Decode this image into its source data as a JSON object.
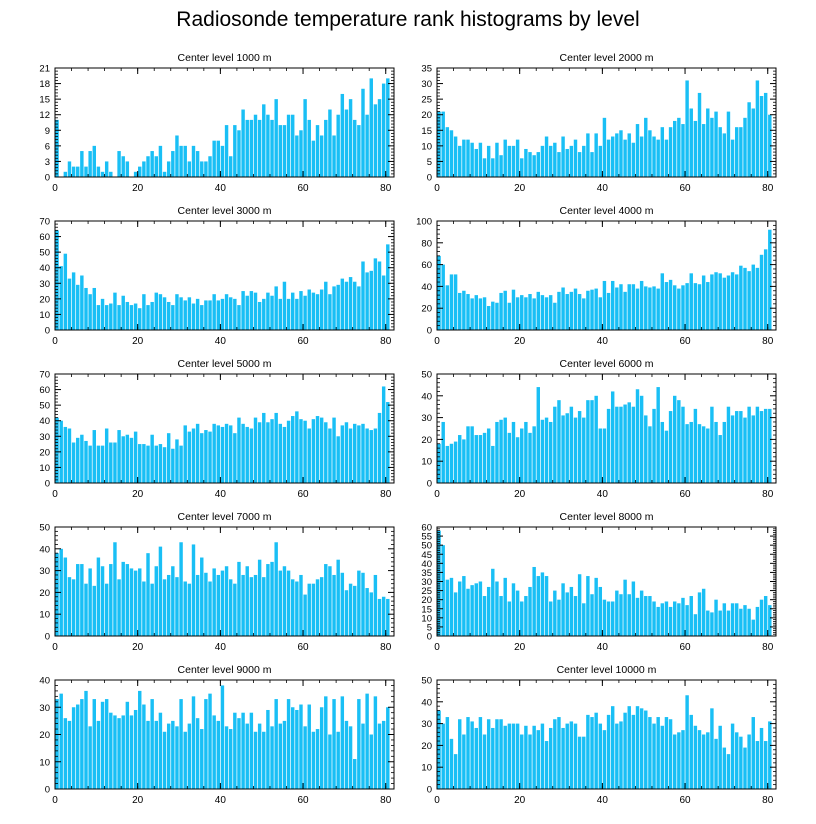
{
  "figure_title": "Radiosonde temperature rank histograms by level",
  "bar_color": "#19bff5",
  "bar_outline": "#ffffff",
  "chart_data": [
    {
      "type": "bar",
      "title": "Center level 1000 m",
      "xlim": [
        0,
        82
      ],
      "ylim": [
        0,
        21
      ],
      "xticks": [
        0,
        20,
        40,
        60,
        80
      ],
      "yticks": [
        0,
        3,
        6,
        9,
        12,
        15,
        18,
        21
      ],
      "values": [
        11,
        0,
        1,
        3,
        2,
        2,
        5,
        2,
        5,
        6,
        2,
        1,
        3,
        1,
        0,
        5,
        4,
        3,
        0,
        1,
        2,
        3,
        4,
        5,
        4,
        6,
        1,
        3,
        5,
        8,
        6,
        6,
        3,
        6,
        5,
        3,
        3,
        4,
        7,
        7,
        6,
        10,
        4,
        10,
        9,
        13,
        11,
        11,
        12,
        11,
        14,
        12,
        11,
        15,
        10,
        10,
        12,
        12,
        8,
        9,
        15,
        11,
        7,
        10,
        8,
        11,
        13,
        8,
        12,
        16,
        13,
        15,
        11,
        10,
        17,
        12,
        19,
        14,
        15,
        18,
        19
      ]
    },
    {
      "type": "bar",
      "title": "Center level 2000 m",
      "xlim": [
        0,
        82
      ],
      "ylim": [
        0,
        35
      ],
      "xticks": [
        0,
        20,
        40,
        60,
        80
      ],
      "yticks": [
        0,
        5,
        10,
        15,
        20,
        25,
        30,
        35
      ],
      "values": [
        21,
        21,
        16,
        15,
        13,
        10,
        12,
        12,
        11,
        9,
        11,
        6,
        10,
        6,
        11,
        7,
        12,
        10,
        10,
        12,
        6,
        9,
        8,
        7,
        8,
        10,
        13,
        10,
        11,
        8,
        13,
        9,
        10,
        12,
        8,
        10,
        14,
        8,
        14,
        10,
        19,
        12,
        13,
        14,
        15,
        12,
        14,
        11,
        17,
        13,
        19,
        15,
        13,
        12,
        16,
        12,
        16,
        18,
        19,
        17,
        31,
        22,
        18,
        27,
        17,
        22,
        19,
        21,
        16,
        14,
        21,
        12,
        16,
        16,
        19,
        24,
        22,
        31,
        26,
        27,
        20
      ]
    },
    {
      "type": "bar",
      "title": "Center level 3000 m",
      "xlim": [
        0,
        82
      ],
      "ylim": [
        0,
        70
      ],
      "xticks": [
        0,
        20,
        40,
        60,
        80
      ],
      "yticks": [
        0,
        10,
        20,
        30,
        40,
        50,
        60,
        70
      ],
      "values": [
        64,
        41,
        49,
        33,
        37,
        29,
        35,
        27,
        23,
        27,
        16,
        20,
        16,
        17,
        24,
        16,
        22,
        18,
        16,
        17,
        14,
        23,
        16,
        18,
        24,
        23,
        21,
        18,
        16,
        23,
        21,
        19,
        21,
        17,
        20,
        16,
        19,
        19,
        23,
        19,
        20,
        23,
        21,
        20,
        16,
        25,
        22,
        25,
        24,
        18,
        20,
        24,
        22,
        28,
        20,
        31,
        20,
        24,
        20,
        25,
        22,
        26,
        24,
        23,
        26,
        31,
        23,
        28,
        29,
        33,
        31,
        34,
        31,
        28,
        44,
        37,
        38,
        46,
        44,
        35,
        55
      ]
    },
    {
      "type": "bar",
      "title": "Center level 4000 m",
      "xlim": [
        0,
        82
      ],
      "ylim": [
        0,
        100
      ],
      "xticks": [
        0,
        20,
        40,
        60,
        80
      ],
      "yticks": [
        0,
        20,
        40,
        60,
        80,
        100
      ],
      "values": [
        68,
        60,
        41,
        51,
        51,
        34,
        36,
        33,
        29,
        32,
        29,
        30,
        22,
        26,
        25,
        34,
        36,
        25,
        37,
        30,
        32,
        30,
        33,
        29,
        35,
        32,
        30,
        32,
        25,
        35,
        39,
        33,
        35,
        38,
        33,
        29,
        36,
        37,
        38,
        30,
        45,
        34,
        45,
        39,
        42,
        35,
        42,
        42,
        38,
        45,
        40,
        39,
        40,
        38,
        52,
        44,
        46,
        41,
        38,
        41,
        43,
        52,
        43,
        42,
        50,
        44,
        51,
        53,
        52,
        48,
        50,
        53,
        51,
        59,
        57,
        54,
        60,
        57,
        69,
        74,
        92
      ]
    },
    {
      "type": "bar",
      "title": "Center level 5000 m",
      "xlim": [
        0,
        82
      ],
      "ylim": [
        0,
        70
      ],
      "xticks": [
        0,
        20,
        40,
        60,
        80
      ],
      "yticks": [
        0,
        10,
        20,
        30,
        40,
        50,
        60,
        70
      ],
      "values": [
        42,
        40,
        36,
        35,
        26,
        29,
        31,
        27,
        24,
        34,
        24,
        24,
        35,
        26,
        26,
        34,
        30,
        31,
        29,
        33,
        25,
        25,
        24,
        31,
        24,
        25,
        23,
        32,
        22,
        28,
        24,
        37,
        33,
        35,
        38,
        32,
        34,
        33,
        38,
        37,
        36,
        38,
        37,
        32,
        42,
        38,
        36,
        35,
        42,
        39,
        45,
        39,
        41,
        45,
        38,
        36,
        40,
        43,
        46,
        41,
        40,
        35,
        41,
        43,
        42,
        39,
        35,
        42,
        30,
        37,
        39,
        35,
        38,
        37,
        38,
        35,
        34,
        35,
        45,
        62,
        52
      ]
    },
    {
      "type": "bar",
      "title": "Center level 6000 m",
      "xlim": [
        0,
        82
      ],
      "ylim": [
        0,
        50
      ],
      "xticks": [
        0,
        20,
        40,
        60,
        80
      ],
      "yticks": [
        0,
        10,
        20,
        30,
        40,
        50
      ],
      "values": [
        18,
        28,
        17,
        18,
        19,
        22,
        20,
        26,
        26,
        22,
        22,
        23,
        25,
        17,
        28,
        29,
        30,
        23,
        28,
        21,
        25,
        28,
        23,
        26,
        44,
        29,
        30,
        28,
        35,
        38,
        31,
        32,
        35,
        30,
        33,
        30,
        38,
        38,
        40,
        25,
        25,
        34,
        42,
        35,
        35,
        36,
        37,
        35,
        43,
        40,
        31,
        26,
        34,
        44,
        28,
        24,
        33,
        40,
        38,
        35,
        27,
        28,
        34,
        27,
        26,
        25,
        35,
        28,
        22,
        28,
        35,
        31,
        33,
        33,
        30,
        35,
        31,
        35,
        33,
        34,
        34
      ]
    },
    {
      "type": "bar",
      "title": "Center level 7000 m",
      "xlim": [
        0,
        82
      ],
      "ylim": [
        0,
        50
      ],
      "xticks": [
        0,
        20,
        40,
        60,
        80
      ],
      "yticks": [
        0,
        10,
        20,
        30,
        40,
        50
      ],
      "values": [
        38,
        40,
        36,
        27,
        26,
        33,
        33,
        24,
        31,
        23,
        36,
        32,
        24,
        33,
        43,
        26,
        34,
        33,
        31,
        30,
        31,
        25,
        38,
        24,
        32,
        41,
        26,
        28,
        32,
        27,
        43,
        25,
        24,
        42,
        28,
        36,
        29,
        25,
        31,
        28,
        30,
        32,
        26,
        24,
        34,
        28,
        32,
        27,
        28,
        35,
        27,
        33,
        34,
        43,
        30,
        32,
        30,
        26,
        25,
        28,
        19,
        24,
        24,
        26,
        27,
        33,
        32,
        28,
        35,
        29,
        21,
        24,
        23,
        30,
        29,
        22,
        20,
        28,
        17,
        18,
        17
      ]
    },
    {
      "type": "bar",
      "title": "Center level 8000 m",
      "xlim": [
        0,
        82
      ],
      "ylim": [
        0,
        60
      ],
      "xticks": [
        0,
        20,
        40,
        60,
        80
      ],
      "yticks": [
        0,
        5,
        10,
        15,
        20,
        25,
        30,
        35,
        40,
        45,
        50,
        55,
        60
      ],
      "values": [
        58,
        50,
        31,
        32,
        24,
        30,
        33,
        26,
        28,
        29,
        30,
        22,
        27,
        37,
        30,
        22,
        32,
        19,
        29,
        25,
        19,
        22,
        27,
        38,
        33,
        35,
        33,
        19,
        25,
        20,
        29,
        24,
        27,
        22,
        34,
        18,
        33,
        23,
        32,
        27,
        20,
        19,
        19,
        25,
        23,
        31,
        23,
        30,
        21,
        25,
        22,
        22,
        19,
        16,
        18,
        19,
        16,
        19,
        18,
        21,
        17,
        22,
        12,
        24,
        26,
        14,
        13,
        20,
        14,
        18,
        14,
        18,
        18,
        15,
        17,
        15,
        9,
        16,
        20,
        22,
        17
      ]
    },
    {
      "type": "bar",
      "title": "Center level 9000 m",
      "xlim": [
        0,
        82
      ],
      "ylim": [
        0,
        40
      ],
      "xticks": [
        0,
        20,
        40,
        60,
        80
      ],
      "yticks": [
        0,
        10,
        20,
        30,
        40
      ],
      "values": [
        33,
        35,
        26,
        25,
        30,
        31,
        33,
        36,
        23,
        33,
        25,
        32,
        33,
        28,
        27,
        26,
        27,
        32,
        27,
        29,
        36,
        31,
        25,
        33,
        25,
        28,
        21,
        24,
        25,
        23,
        33,
        21,
        24,
        34,
        26,
        22,
        33,
        35,
        27,
        25,
        38,
        23,
        22,
        28,
        26,
        28,
        24,
        28,
        21,
        24,
        21,
        29,
        23,
        33,
        24,
        25,
        33,
        30,
        29,
        31,
        23,
        31,
        21,
        22,
        30,
        34,
        20,
        33,
        21,
        34,
        25,
        23,
        11,
        33,
        24,
        35,
        20,
        34,
        24,
        25,
        30
      ]
    },
    {
      "type": "bar",
      "title": "Center level 10000 m",
      "xlim": [
        0,
        82
      ],
      "ylim": [
        0,
        50
      ],
      "xticks": [
        0,
        20,
        40,
        60,
        80
      ],
      "yticks": [
        0,
        10,
        20,
        30,
        40,
        50
      ],
      "values": [
        36,
        30,
        33,
        23,
        16,
        32,
        25,
        33,
        31,
        28,
        33,
        25,
        32,
        28,
        32,
        32,
        29,
        30,
        30,
        30,
        25,
        29,
        25,
        29,
        27,
        30,
        22,
        28,
        32,
        33,
        28,
        30,
        31,
        30,
        24,
        24,
        34,
        33,
        35,
        30,
        27,
        34,
        38,
        30,
        31,
        35,
        38,
        34,
        38,
        37,
        36,
        33,
        30,
        33,
        29,
        33,
        32,
        25,
        26,
        27,
        43,
        34,
        29,
        27,
        25,
        26,
        37,
        23,
        29,
        19,
        16,
        30,
        26,
        24,
        19,
        25,
        33,
        22,
        28,
        22,
        31
      ]
    }
  ]
}
